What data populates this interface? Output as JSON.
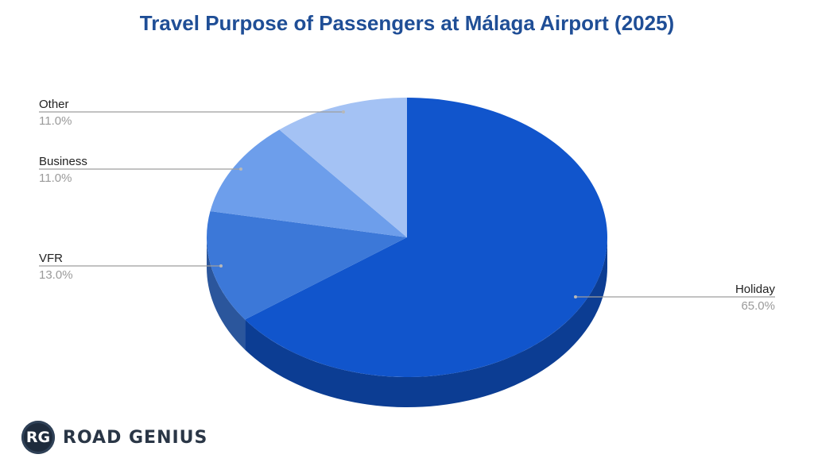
{
  "chart_data": {
    "type": "pie",
    "title": "Travel Purpose of Passengers at Málaga Airport (2025)",
    "slices": [
      {
        "label": "Holiday",
        "value": 65.0,
        "display": "65.0%",
        "color": "#1155cc"
      },
      {
        "label": "VFR",
        "value": 13.0,
        "display": "13.0%",
        "color": "#3c78d8"
      },
      {
        "label": "Business",
        "value": 11.0,
        "display": "11.0%",
        "color": "#6d9eeb"
      },
      {
        "label": "Other",
        "value": 11.0,
        "display": "11.0%",
        "color": "#a4c2f4"
      }
    ],
    "style": "3d",
    "legend": "none"
  },
  "brand": {
    "badge": "RG",
    "name": "ROAD GENIUS"
  }
}
